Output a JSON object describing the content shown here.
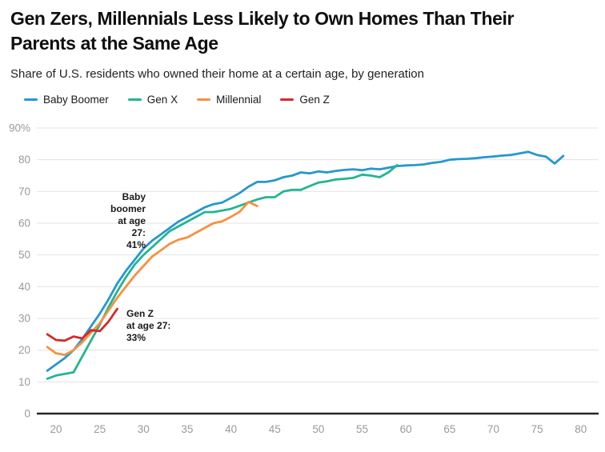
{
  "chart_data": {
    "type": "line",
    "title": "Gen Zers, Millennials Less Likely to Own Homes Than Their\nParents at the Same Age",
    "subtitle": "Share of U.S. residents who owned their home at a certain age, by generation",
    "xlabel": "",
    "ylabel": "",
    "x_unit": "age in years",
    "y_unit": "percent owning home",
    "xlim": [
      18.5,
      81
    ],
    "ylim": [
      0,
      90
    ],
    "grid": true,
    "legend_position": "top-left",
    "x_ticks": [
      20,
      25,
      30,
      35,
      40,
      45,
      50,
      55,
      60,
      65,
      70,
      75,
      80
    ],
    "y_ticks": [
      {
        "value": 0,
        "label": "0"
      },
      {
        "value": 10,
        "label": "10"
      },
      {
        "value": 20,
        "label": "20"
      },
      {
        "value": 30,
        "label": "30"
      },
      {
        "value": 40,
        "label": "40"
      },
      {
        "value": 50,
        "label": "50"
      },
      {
        "value": 60,
        "label": "60"
      },
      {
        "value": 70,
        "label": "70"
      },
      {
        "value": 80,
        "label": "80"
      },
      {
        "value": 90,
        "label": "90%"
      }
    ],
    "series": [
      {
        "name": "Baby Boomer",
        "color": "#2598CE",
        "points": [
          [
            19,
            13.5
          ],
          [
            20,
            15.5
          ],
          [
            21,
            17.5
          ],
          [
            22,
            20
          ],
          [
            23,
            23.5
          ],
          [
            24,
            27.5
          ],
          [
            25,
            31.5
          ],
          [
            26,
            36
          ],
          [
            27,
            41
          ],
          [
            28,
            45
          ],
          [
            29,
            48.5
          ],
          [
            30,
            52
          ],
          [
            31,
            54.5
          ],
          [
            32,
            56.5
          ],
          [
            33,
            58.5
          ],
          [
            34,
            60.5
          ],
          [
            35,
            62
          ],
          [
            36,
            63.5
          ],
          [
            37,
            65
          ],
          [
            38,
            66
          ],
          [
            39,
            66.5
          ],
          [
            40,
            68
          ],
          [
            41,
            69.5
          ],
          [
            42,
            71.5
          ],
          [
            43,
            73
          ],
          [
            44,
            73
          ],
          [
            45,
            73.5
          ],
          [
            46,
            74.5
          ],
          [
            47,
            75
          ],
          [
            48,
            76
          ],
          [
            49,
            75.7
          ],
          [
            50,
            76.3
          ],
          [
            51,
            76
          ],
          [
            52,
            76.5
          ],
          [
            53,
            76.8
          ],
          [
            54,
            77
          ],
          [
            55,
            76.7
          ],
          [
            56,
            77.2
          ],
          [
            57,
            77
          ],
          [
            58,
            77.5
          ],
          [
            59,
            78
          ],
          [
            60,
            78.2
          ],
          [
            61,
            78.3
          ],
          [
            62,
            78.5
          ],
          [
            63,
            79
          ],
          [
            64,
            79.3
          ],
          [
            65,
            80
          ],
          [
            66,
            80.2
          ],
          [
            67,
            80.3
          ],
          [
            68,
            80.5
          ],
          [
            69,
            80.8
          ],
          [
            70,
            81
          ],
          [
            71,
            81.3
          ],
          [
            72,
            81.5
          ],
          [
            73,
            82
          ],
          [
            74,
            82.5
          ],
          [
            75,
            81.5
          ],
          [
            76,
            81
          ],
          [
            77,
            78.8
          ],
          [
            78,
            81.2
          ]
        ]
      },
      {
        "name": "Gen X",
        "color": "#23B592",
        "points": [
          [
            19,
            11
          ],
          [
            20,
            12
          ],
          [
            21,
            12.5
          ],
          [
            22,
            13
          ],
          [
            23,
            18
          ],
          [
            24,
            23
          ],
          [
            25,
            28
          ],
          [
            26,
            33.5
          ],
          [
            27,
            38.5
          ],
          [
            28,
            43
          ],
          [
            29,
            47
          ],
          [
            30,
            50
          ],
          [
            31,
            52.5
          ],
          [
            32,
            55
          ],
          [
            33,
            57.5
          ],
          [
            34,
            59
          ],
          [
            35,
            60.5
          ],
          [
            36,
            62
          ],
          [
            37,
            63.5
          ],
          [
            38,
            63.5
          ],
          [
            39,
            64
          ],
          [
            40,
            64.5
          ],
          [
            41,
            65.5
          ],
          [
            42,
            66.5
          ],
          [
            43,
            67.5
          ],
          [
            44,
            68.2
          ],
          [
            45,
            68.2
          ],
          [
            46,
            70
          ],
          [
            47,
            70.5
          ],
          [
            48,
            70.5
          ],
          [
            49,
            71.7
          ],
          [
            50,
            72.8
          ],
          [
            51,
            73.2
          ],
          [
            52,
            73.8
          ],
          [
            53,
            74
          ],
          [
            54,
            74.3
          ],
          [
            55,
            75.3
          ],
          [
            56,
            75
          ],
          [
            57,
            74.5
          ],
          [
            58,
            76
          ],
          [
            59,
            78.3
          ]
        ]
      },
      {
        "name": "Millennial",
        "color": "#F5923E",
        "points": [
          [
            19,
            21
          ],
          [
            20,
            19
          ],
          [
            21,
            18.5
          ],
          [
            22,
            20
          ],
          [
            23,
            22.5
          ],
          [
            24,
            25.5
          ],
          [
            25,
            28.5
          ],
          [
            26,
            32.5
          ],
          [
            27,
            36.5
          ],
          [
            28,
            40
          ],
          [
            29,
            43.5
          ],
          [
            30,
            46.5
          ],
          [
            31,
            49.5
          ],
          [
            32,
            51.5
          ],
          [
            33,
            53.5
          ],
          [
            34,
            54.8
          ],
          [
            35,
            55.5
          ],
          [
            36,
            57
          ],
          [
            37,
            58.5
          ],
          [
            38,
            60
          ],
          [
            39,
            60.6
          ],
          [
            40,
            62
          ],
          [
            41,
            63.6
          ],
          [
            42,
            66.7
          ],
          [
            43,
            65.4
          ]
        ]
      },
      {
        "name": "Gen Z",
        "color": "#D4292F",
        "points": [
          [
            19,
            25
          ],
          [
            20,
            23.2
          ],
          [
            21,
            23
          ],
          [
            22,
            24.3
          ],
          [
            23,
            23.7
          ],
          [
            24,
            26.3
          ],
          [
            25,
            26
          ],
          [
            26,
            29
          ],
          [
            27,
            33
          ]
        ]
      }
    ],
    "annotations": [
      {
        "text": "Baby\nboomer\nat age\n27:\n41%",
        "align": "right"
      },
      {
        "text": "Gen Z\nat age 27:\n33%",
        "align": "left"
      }
    ]
  }
}
